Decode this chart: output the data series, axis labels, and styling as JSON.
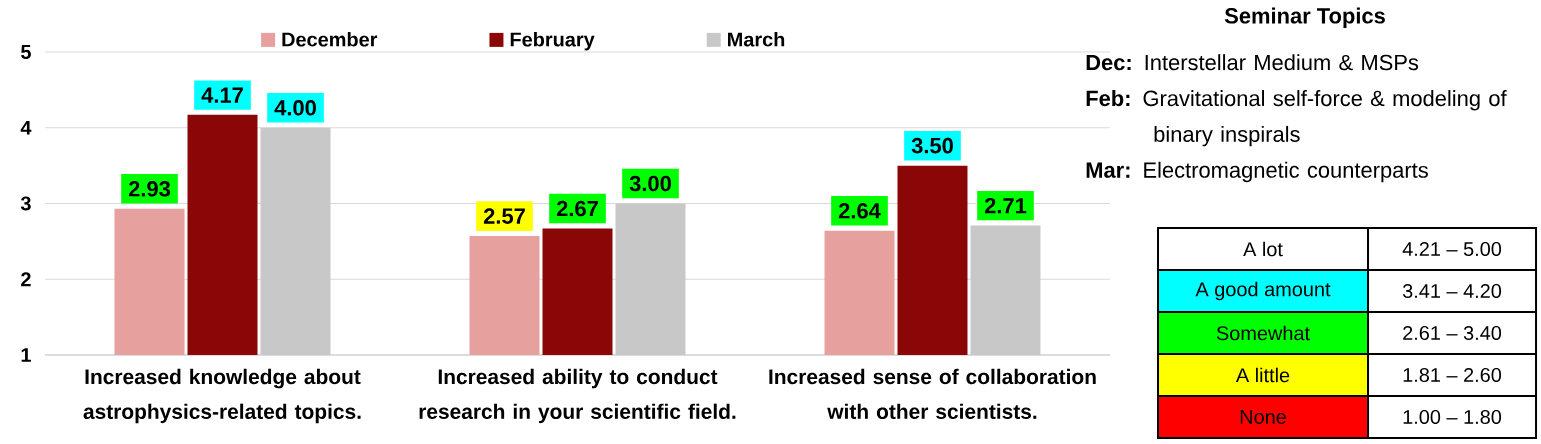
{
  "chart_data": {
    "type": "bar",
    "categories": [
      "Increased knowledge about astrophysics-related topics.",
      "Increased ability to conduct research in your scientific field.",
      "Increased sense of collaboration with other scientists."
    ],
    "series": [
      {
        "name": "December",
        "color": "#e6a09d",
        "values": [
          2.93,
          2.57,
          2.64
        ],
        "value_labels": [
          "2.93",
          "2.57",
          "2.64"
        ]
      },
      {
        "name": "February",
        "color": "#8b0707",
        "values": [
          4.17,
          2.67,
          3.5
        ],
        "value_labels": [
          "4.17",
          "2.67",
          "3.50"
        ]
      },
      {
        "name": "March",
        "color": "#c8c8c8",
        "values": [
          4.0,
          3.0,
          2.71
        ],
        "value_labels": [
          "4.00",
          "3.00",
          "2.71"
        ]
      }
    ],
    "ylim": [
      1,
      5
    ],
    "yticks": [
      1,
      2,
      3,
      4,
      5
    ],
    "grid": "y",
    "legend": "top",
    "annotations": [
      "Seminar Topics",
      "**Dec:** Interstellar Medium & MSPs",
      "**Feb:** Gravitational self-force & modeling of binary inspirals",
      "**Mar:** Electromagnetic counterparts",
      "A lot",
      "4.21 – 5.00",
      "A good amount",
      "3.41 – 4.20",
      "Somewhat",
      "2.61 – 3.40",
      "A little",
      "1.81 – 2.60",
      "None",
      "1.00 – 1.80"
    ]
  }
}
